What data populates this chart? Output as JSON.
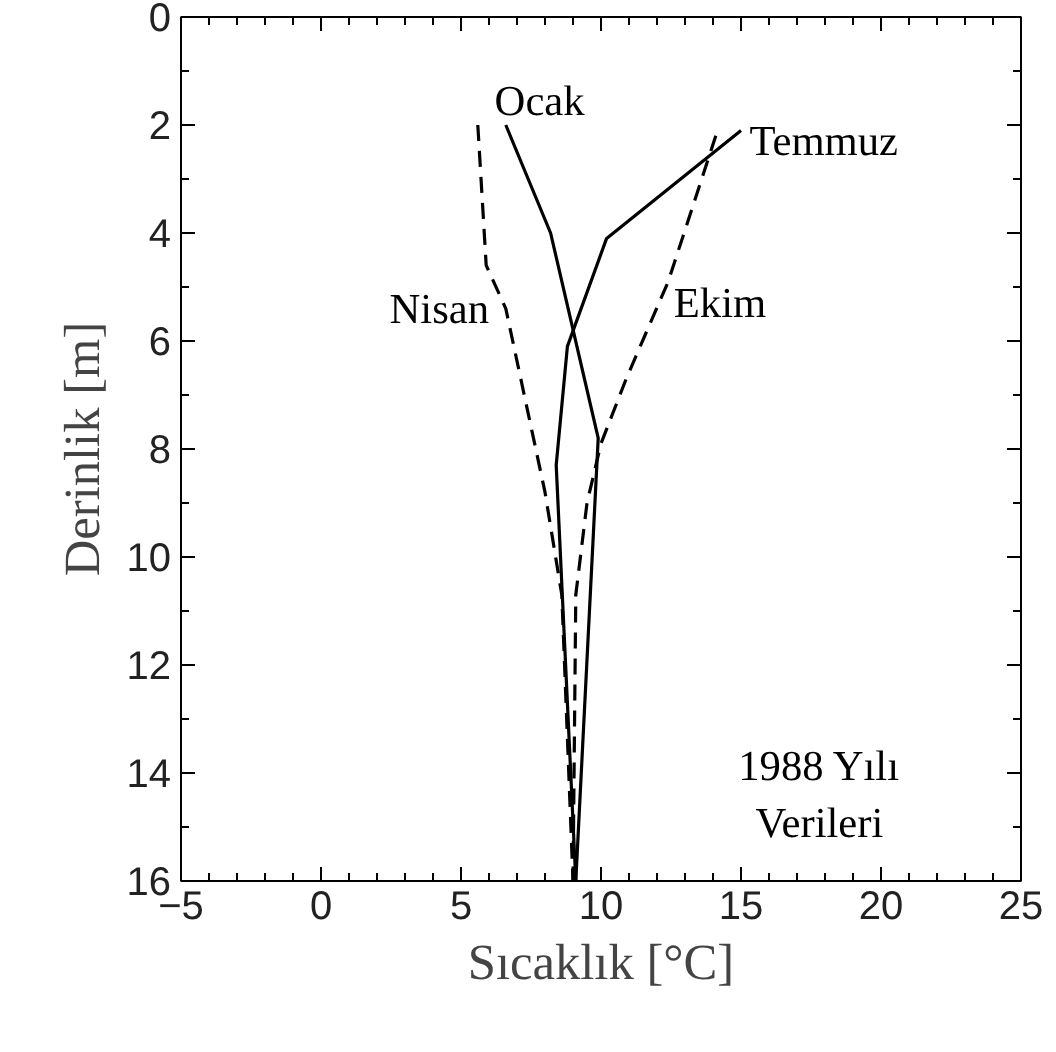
{
  "chart_data": {
    "type": "line",
    "xlabel": "Sıcaklık [°C]",
    "ylabel": "Derinlik [m]",
    "xlim": [
      -5,
      25
    ],
    "xticks": [
      -5,
      0,
      5,
      10,
      15,
      20,
      25
    ],
    "ylim": [
      16,
      0
    ],
    "yticks": [
      0,
      2,
      4,
      6,
      8,
      10,
      12,
      14,
      16
    ],
    "grid": false,
    "series": [
      {
        "name": "Ocak",
        "color": "#000000",
        "line_style": "solid",
        "x": [
          6.6,
          8.2,
          9.9,
          9.1
        ],
        "values": [
          2,
          4,
          7.8,
          16
        ]
      },
      {
        "name": "Temmuz",
        "color": "#000000",
        "line_style": "solid",
        "x": [
          15.0,
          10.2,
          8.8,
          8.4,
          9.1
        ],
        "values": [
          2.1,
          4.1,
          6.1,
          8.3,
          16
        ]
      },
      {
        "name": "Nisan",
        "color": "#000000",
        "line_style": "dashed",
        "x": [
          5.6,
          5.9,
          6.6,
          8.0,
          8.6,
          9.0
        ],
        "values": [
          2,
          4.6,
          5.4,
          8.8,
          10.7,
          16
        ]
      },
      {
        "name": "Ekim",
        "color": "#000000",
        "line_style": "dashed",
        "x": [
          14.1,
          12.4,
          10.9,
          10.0,
          9.5,
          9.1,
          9.0
        ],
        "values": [
          2.2,
          4.9,
          6.7,
          7.9,
          9.0,
          10.7,
          16
        ]
      }
    ],
    "annotations": [
      "1988 Yılı\nVerileri"
    ]
  }
}
